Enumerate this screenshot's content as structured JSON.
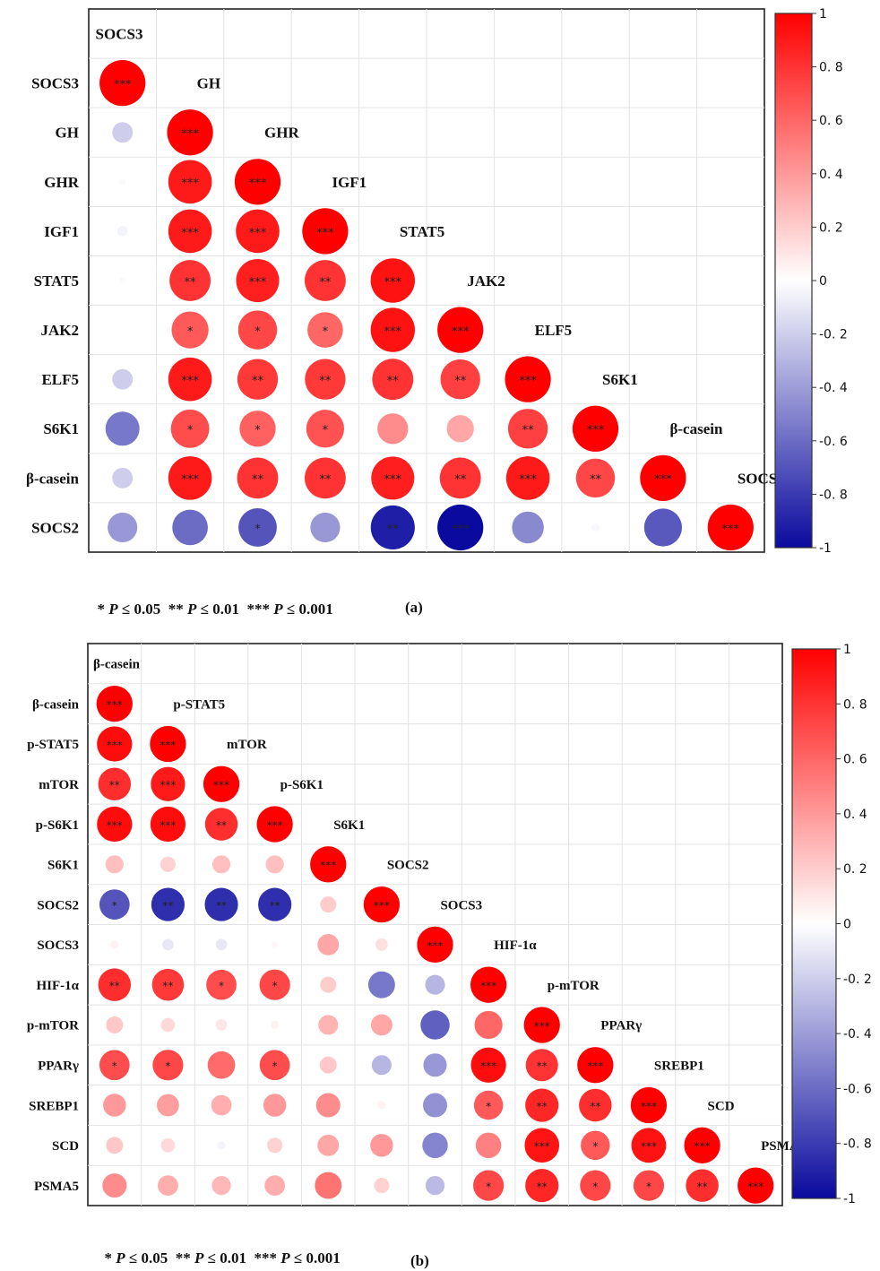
{
  "colors": {
    "negative": "#0a0a9e",
    "neutral": "#ffffff",
    "positive": "#ff0000"
  },
  "significance_note": {
    "a": [
      "*",
      "P",
      "≤ 0.05",
      "**",
      "P",
      "≤ 0.01",
      "***",
      "P",
      "≤ 0.001"
    ],
    "b": [
      "*",
      "P",
      "≤ 0.05",
      "**",
      "P",
      "≤ 0.01",
      "***",
      "P",
      "≤ 0.001"
    ]
  },
  "chart_data": [
    {
      "type": "heatmap",
      "panel_label": "(a)",
      "variables": [
        "SOCS3",
        "GH",
        "GHR",
        "IGF1",
        "STAT5",
        "JAK2",
        "ELF5",
        "S6K1",
        "β-casein",
        "SOCS2"
      ],
      "colorbar": {
        "range": [
          -1,
          1
        ],
        "ticks": [
          "1",
          "0. 8",
          "0. 6",
          "0. 4",
          "0. 2",
          "0",
          "-0. 2",
          "-0. 4",
          "-0. 6",
          "-0. 8",
          "-1"
        ]
      },
      "grid": true,
      "legend_position": "right",
      "lower_triangle": [
        [
          [
            1.0,
            "***"
          ]
        ],
        [
          [
            -0.2,
            ""
          ],
          [
            1.0,
            "***"
          ]
        ],
        [
          [
            -0.02,
            ""
          ],
          [
            0.9,
            "***"
          ],
          [
            1.0,
            "***"
          ]
        ],
        [
          [
            -0.05,
            ""
          ],
          [
            0.9,
            "***"
          ],
          [
            0.9,
            "***"
          ],
          [
            1.0,
            "***"
          ]
        ],
        [
          [
            -0.02,
            ""
          ],
          [
            0.8,
            "**"
          ],
          [
            0.88,
            "***"
          ],
          [
            0.8,
            "**"
          ],
          [
            0.93,
            "***"
          ]
        ],
        [
          [
            0.0,
            ""
          ],
          [
            0.65,
            "*"
          ],
          [
            0.72,
            "*"
          ],
          [
            0.6,
            "*"
          ],
          [
            0.93,
            "***"
          ],
          [
            1.0,
            "***"
          ]
        ],
        [
          [
            -0.2,
            ""
          ],
          [
            0.9,
            "***"
          ],
          [
            0.78,
            "**"
          ],
          [
            0.78,
            "**"
          ],
          [
            0.8,
            "**"
          ],
          [
            0.75,
            "**"
          ],
          [
            1.0,
            "***"
          ]
        ],
        [
          [
            -0.55,
            ""
          ],
          [
            0.7,
            "*"
          ],
          [
            0.62,
            "*"
          ],
          [
            0.68,
            "*"
          ],
          [
            0.45,
            ""
          ],
          [
            0.35,
            ""
          ],
          [
            0.75,
            "**"
          ],
          [
            1.0,
            "***"
          ]
        ],
        [
          [
            -0.2,
            ""
          ],
          [
            0.9,
            "***"
          ],
          [
            0.8,
            "**"
          ],
          [
            0.8,
            "**"
          ],
          [
            0.88,
            "***"
          ],
          [
            0.8,
            "**"
          ],
          [
            0.9,
            "***"
          ],
          [
            0.72,
            "**"
          ],
          [
            1.0,
            "***"
          ]
        ],
        [
          [
            -0.42,
            ""
          ],
          [
            -0.6,
            ""
          ],
          [
            -0.7,
            "*"
          ],
          [
            -0.42,
            ""
          ],
          [
            -0.92,
            "**"
          ],
          [
            -1.0,
            "***"
          ],
          [
            -0.48,
            ""
          ],
          [
            -0.03,
            ""
          ],
          [
            -0.68,
            ""
          ],
          [
            1.0,
            "***"
          ]
        ]
      ]
    },
    {
      "type": "heatmap",
      "panel_label": "(b)",
      "variables": [
        "β-casein",
        "p-STAT5",
        "mTOR",
        "p-S6K1",
        "S6K1",
        "SOCS2",
        "SOCS3",
        "HIF-1α",
        "p-mTOR",
        "PPARγ",
        "SREBP1",
        "SCD",
        "PSMA5"
      ],
      "colorbar": {
        "range": [
          -1,
          1
        ],
        "ticks": [
          "1",
          "0. 8",
          "0. 6",
          "0. 4",
          "0. 2",
          "0",
          "-0. 2",
          "-0. 4",
          "-0. 6",
          "-0. 8",
          "-1"
        ]
      },
      "grid": true,
      "legend_position": "right",
      "lower_triangle": [
        [
          [
            1.0,
            "***"
          ]
        ],
        [
          [
            0.95,
            "***"
          ],
          [
            1.0,
            "***"
          ]
        ],
        [
          [
            0.82,
            "**"
          ],
          [
            0.9,
            "***"
          ],
          [
            1.0,
            "***"
          ]
        ],
        [
          [
            0.95,
            "***"
          ],
          [
            0.95,
            "***"
          ],
          [
            0.82,
            "**"
          ],
          [
            1.0,
            "***"
          ]
        ],
        [
          [
            0.25,
            ""
          ],
          [
            0.18,
            ""
          ],
          [
            0.25,
            ""
          ],
          [
            0.25,
            ""
          ],
          [
            1.0,
            "***"
          ]
        ],
        [
          [
            -0.7,
            "*"
          ],
          [
            -0.85,
            "**"
          ],
          [
            -0.85,
            "**"
          ],
          [
            -0.85,
            "**"
          ],
          [
            0.2,
            ""
          ],
          [
            1.0,
            "***"
          ]
        ],
        [
          [
            0.05,
            ""
          ],
          [
            -0.1,
            ""
          ],
          [
            -0.1,
            ""
          ],
          [
            0.03,
            ""
          ],
          [
            0.35,
            ""
          ],
          [
            0.12,
            ""
          ],
          [
            1.0,
            "***"
          ]
        ],
        [
          [
            0.82,
            "**"
          ],
          [
            0.78,
            "**"
          ],
          [
            0.7,
            "*"
          ],
          [
            0.72,
            "*"
          ],
          [
            0.2,
            ""
          ],
          [
            -0.55,
            ""
          ],
          [
            -0.3,
            ""
          ],
          [
            1.0,
            "***"
          ]
        ],
        [
          [
            0.22,
            ""
          ],
          [
            0.15,
            ""
          ],
          [
            0.1,
            ""
          ],
          [
            0.05,
            ""
          ],
          [
            0.3,
            ""
          ],
          [
            0.35,
            ""
          ],
          [
            -0.65,
            ""
          ],
          [
            0.6,
            ""
          ],
          [
            1.0,
            "***"
          ]
        ],
        [
          [
            0.7,
            "*"
          ],
          [
            0.72,
            "*"
          ],
          [
            0.58,
            ""
          ],
          [
            0.7,
            "*"
          ],
          [
            0.22,
            ""
          ],
          [
            -0.3,
            ""
          ],
          [
            -0.42,
            ""
          ],
          [
            0.95,
            "***"
          ],
          [
            0.8,
            "**"
          ],
          [
            1.0,
            "***"
          ]
        ],
        [
          [
            0.4,
            ""
          ],
          [
            0.38,
            ""
          ],
          [
            0.32,
            ""
          ],
          [
            0.4,
            ""
          ],
          [
            0.45,
            ""
          ],
          [
            0.05,
            ""
          ],
          [
            -0.45,
            ""
          ],
          [
            0.65,
            "*"
          ],
          [
            0.85,
            "**"
          ],
          [
            0.82,
            "**"
          ],
          [
            1.0,
            "***"
          ]
        ],
        [
          [
            0.22,
            ""
          ],
          [
            0.15,
            ""
          ],
          [
            -0.05,
            ""
          ],
          [
            0.18,
            ""
          ],
          [
            0.35,
            ""
          ],
          [
            0.4,
            ""
          ],
          [
            -0.5,
            ""
          ],
          [
            0.5,
            ""
          ],
          [
            0.92,
            "***"
          ],
          [
            0.65,
            "*"
          ],
          [
            0.93,
            "***"
          ],
          [
            1.0,
            "***"
          ]
        ],
        [
          [
            0.45,
            ""
          ],
          [
            0.32,
            ""
          ],
          [
            0.28,
            ""
          ],
          [
            0.32,
            ""
          ],
          [
            0.55,
            ""
          ],
          [
            0.18,
            ""
          ],
          [
            -0.28,
            ""
          ],
          [
            0.72,
            "*"
          ],
          [
            0.85,
            "**"
          ],
          [
            0.72,
            "*"
          ],
          [
            0.72,
            "*"
          ],
          [
            0.82,
            "**"
          ],
          [
            1.0,
            "***"
          ]
        ]
      ]
    }
  ]
}
